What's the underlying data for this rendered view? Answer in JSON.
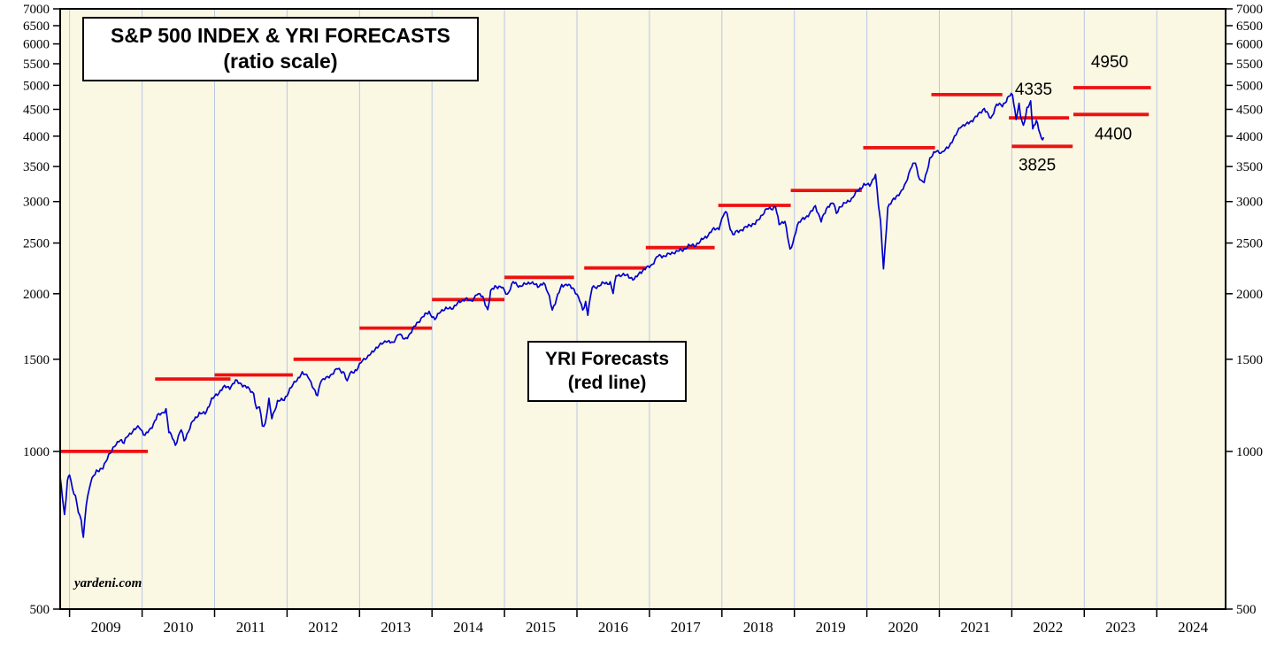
{
  "title_box": {
    "line1": "S&P 500 INDEX & YRI FORECASTS",
    "line2": "(ratio scale)"
  },
  "forecast_box": {
    "line1": "YRI Forecasts",
    "line2": "(red line)"
  },
  "credit": "yardeni.com",
  "chart_data": {
    "type": "line",
    "title": "S&P 500 INDEX & YRI FORECASTS (ratio scale)",
    "scale": "log",
    "x_domain": [
      2008.87,
      2024.95
    ],
    "y_domain": [
      500,
      7000
    ],
    "y_ticks": [
      500,
      1000,
      1500,
      2000,
      2500,
      3000,
      3500,
      4000,
      4500,
      5000,
      5500,
      6000,
      6500,
      7000
    ],
    "x_year_labels": [
      2009,
      2010,
      2011,
      2012,
      2013,
      2014,
      2015,
      2016,
      2017,
      2018,
      2019,
      2020,
      2021,
      2022,
      2023,
      2024
    ],
    "grid_years": [
      2009,
      2010,
      2011,
      2012,
      2013,
      2014,
      2015,
      2016,
      2017,
      2018,
      2019,
      2020,
      2021,
      2022,
      2023,
      2024
    ],
    "legend": [
      {
        "name": "S&P 500 Index",
        "color_key": "index_line"
      },
      {
        "name": "YRI Forecasts",
        "color_key": "forecast_line"
      }
    ],
    "colors": {
      "index_line": "#0000cd",
      "forecast_line": "#ee1111",
      "grid": "#b9c7e6",
      "plot_bg": "#faf7e3",
      "axis": "#000000"
    },
    "forecast_segments": [
      {
        "value": 1000,
        "from": 2008.87,
        "to": 2010.08
      },
      {
        "value": 1375,
        "from": 2010.18,
        "to": 2011.22
      },
      {
        "value": 1400,
        "from": 2011.0,
        "to": 2012.08
      },
      {
        "value": 1500,
        "from": 2012.09,
        "to": 2013.02
      },
      {
        "value": 1720,
        "from": 2013.0,
        "to": 2014.0
      },
      {
        "value": 1950,
        "from": 2014.0,
        "to": 2015.0
      },
      {
        "value": 2150,
        "from": 2015.0,
        "to": 2015.96
      },
      {
        "value": 2240,
        "from": 2016.1,
        "to": 2016.95
      },
      {
        "value": 2450,
        "from": 2016.95,
        "to": 2017.9
      },
      {
        "value": 2950,
        "from": 2017.95,
        "to": 2018.95
      },
      {
        "value": 3150,
        "from": 2018.95,
        "to": 2019.93
      },
      {
        "value": 3800,
        "from": 2019.95,
        "to": 2020.94
      },
      {
        "value": 4800,
        "from": 2020.89,
        "to": 2021.87
      },
      {
        "value": 4335,
        "from": 2021.96,
        "to": 2022.79
      },
      {
        "value": 3825,
        "from": 2022.0,
        "to": 2022.84
      },
      {
        "value": 4400,
        "from": 2022.85,
        "to": 2023.89
      },
      {
        "value": 4950,
        "from": 2022.85,
        "to": 2023.92
      }
    ],
    "annotations": [
      {
        "label": "4335",
        "year": 2022.3,
        "value": 4335,
        "dy": -26
      },
      {
        "label": "3825",
        "year": 2022.35,
        "value": 3825,
        "dy": 27
      },
      {
        "label": "4950",
        "year": 2023.35,
        "value": 4950,
        "dy": -23
      },
      {
        "label": "4400",
        "year": 2023.4,
        "value": 4400,
        "dy": 28
      }
    ],
    "series": [
      {
        "name": "S&P 500 Index",
        "color_key": "index_line",
        "points": [
          [
            2008.87,
            890
          ],
          [
            2008.9,
            820
          ],
          [
            2008.93,
            757
          ],
          [
            2008.97,
            880
          ],
          [
            2009.0,
            903
          ],
          [
            2009.04,
            845
          ],
          [
            2009.08,
            825
          ],
          [
            2009.12,
            770
          ],
          [
            2009.16,
            735
          ],
          [
            2009.19,
            683
          ],
          [
            2009.23,
            797
          ],
          [
            2009.29,
            872
          ],
          [
            2009.37,
            919
          ],
          [
            2009.46,
            927
          ],
          [
            2009.54,
            987
          ],
          [
            2009.62,
            1020
          ],
          [
            2009.7,
            1057
          ],
          [
            2009.75,
            1036
          ],
          [
            2009.79,
            1066
          ],
          [
            2009.87,
            1095
          ],
          [
            2009.96,
            1115
          ],
          [
            2010.04,
            1073
          ],
          [
            2010.12,
            1104
          ],
          [
            2010.21,
            1169
          ],
          [
            2010.29,
            1186
          ],
          [
            2010.33,
            1205
          ],
          [
            2010.37,
            1089
          ],
          [
            2010.42,
            1064
          ],
          [
            2010.46,
            1030
          ],
          [
            2010.54,
            1101
          ],
          [
            2010.58,
            1049
          ],
          [
            2010.62,
            1078
          ],
          [
            2010.7,
            1141
          ],
          [
            2010.79,
            1183
          ],
          [
            2010.87,
            1180
          ],
          [
            2010.96,
            1257
          ],
          [
            2011.04,
            1286
          ],
          [
            2011.12,
            1327
          ],
          [
            2011.21,
            1325
          ],
          [
            2011.29,
            1363
          ],
          [
            2011.37,
            1345
          ],
          [
            2011.46,
            1320
          ],
          [
            2011.54,
            1292
          ],
          [
            2011.58,
            1200
          ],
          [
            2011.62,
            1218
          ],
          [
            2011.66,
            1120
          ],
          [
            2011.7,
            1131
          ],
          [
            2011.75,
            1253
          ],
          [
            2011.79,
            1158
          ],
          [
            2011.87,
            1246
          ],
          [
            2011.96,
            1257
          ],
          [
            2012.04,
            1312
          ],
          [
            2012.12,
            1365
          ],
          [
            2012.21,
            1408
          ],
          [
            2012.29,
            1397
          ],
          [
            2012.37,
            1310
          ],
          [
            2012.42,
            1278
          ],
          [
            2012.46,
            1362
          ],
          [
            2012.54,
            1379
          ],
          [
            2012.62,
            1406
          ],
          [
            2012.7,
            1440
          ],
          [
            2012.79,
            1412
          ],
          [
            2012.83,
            1353
          ],
          [
            2012.87,
            1416
          ],
          [
            2012.96,
            1426
          ],
          [
            2013.04,
            1498
          ],
          [
            2013.12,
            1514
          ],
          [
            2013.21,
            1569
          ],
          [
            2013.29,
            1597
          ],
          [
            2013.37,
            1630
          ],
          [
            2013.46,
            1606
          ],
          [
            2013.54,
            1685
          ],
          [
            2013.62,
            1632
          ],
          [
            2013.7,
            1681
          ],
          [
            2013.79,
            1756
          ],
          [
            2013.87,
            1805
          ],
          [
            2013.96,
            1848
          ],
          [
            2014.04,
            1782
          ],
          [
            2014.12,
            1859
          ],
          [
            2014.21,
            1872
          ],
          [
            2014.29,
            1883
          ],
          [
            2014.37,
            1923
          ],
          [
            2014.46,
            1960
          ],
          [
            2014.54,
            1930
          ],
          [
            2014.62,
            2003
          ],
          [
            2014.7,
            1972
          ],
          [
            2014.77,
            1862
          ],
          [
            2014.81,
            2018
          ],
          [
            2014.87,
            2067
          ],
          [
            2014.96,
            2058
          ],
          [
            2015.04,
            1994
          ],
          [
            2015.12,
            2104
          ],
          [
            2015.21,
            2067
          ],
          [
            2015.29,
            2085
          ],
          [
            2015.37,
            2107
          ],
          [
            2015.46,
            2063
          ],
          [
            2015.54,
            2103
          ],
          [
            2015.62,
            1972
          ],
          [
            2015.66,
            1868
          ],
          [
            2015.7,
            1920
          ],
          [
            2015.79,
            2079
          ],
          [
            2015.87,
            2080
          ],
          [
            2015.96,
            2043
          ],
          [
            2016.04,
            1940
          ],
          [
            2016.08,
            1859
          ],
          [
            2016.12,
            1932
          ],
          [
            2016.15,
            1829
          ],
          [
            2016.21,
            2059
          ],
          [
            2016.29,
            2065
          ],
          [
            2016.37,
            2096
          ],
          [
            2016.46,
            2098
          ],
          [
            2016.5,
            2001
          ],
          [
            2016.54,
            2173
          ],
          [
            2016.62,
            2170
          ],
          [
            2016.7,
            2168
          ],
          [
            2016.79,
            2126
          ],
          [
            2016.87,
            2198
          ],
          [
            2016.96,
            2238
          ],
          [
            2017.04,
            2278
          ],
          [
            2017.12,
            2363
          ],
          [
            2017.21,
            2362
          ],
          [
            2017.29,
            2384
          ],
          [
            2017.37,
            2411
          ],
          [
            2017.46,
            2423
          ],
          [
            2017.54,
            2470
          ],
          [
            2017.62,
            2471
          ],
          [
            2017.7,
            2519
          ],
          [
            2017.79,
            2575
          ],
          [
            2017.87,
            2647
          ],
          [
            2017.96,
            2673
          ],
          [
            2018.02,
            2823
          ],
          [
            2018.07,
            2872
          ],
          [
            2018.1,
            2713
          ],
          [
            2018.15,
            2581
          ],
          [
            2018.21,
            2640
          ],
          [
            2018.29,
            2648
          ],
          [
            2018.37,
            2705
          ],
          [
            2018.46,
            2718
          ],
          [
            2018.54,
            2816
          ],
          [
            2018.62,
            2901
          ],
          [
            2018.7,
            2913
          ],
          [
            2018.74,
            2940
          ],
          [
            2018.79,
            2711
          ],
          [
            2018.87,
            2760
          ],
          [
            2018.94,
            2416
          ],
          [
            2018.98,
            2506
          ],
          [
            2019.04,
            2704
          ],
          [
            2019.12,
            2784
          ],
          [
            2019.21,
            2834
          ],
          [
            2019.29,
            2945
          ],
          [
            2019.37,
            2752
          ],
          [
            2019.46,
            2941
          ],
          [
            2019.54,
            2980
          ],
          [
            2019.58,
            2847
          ],
          [
            2019.62,
            2926
          ],
          [
            2019.7,
            2976
          ],
          [
            2019.79,
            3037
          ],
          [
            2019.87,
            3140
          ],
          [
            2019.96,
            3230
          ],
          [
            2020.04,
            3225
          ],
          [
            2020.12,
            3380
          ],
          [
            2020.16,
            2954
          ],
          [
            2020.19,
            2741
          ],
          [
            2020.23,
            2237
          ],
          [
            2020.29,
            2912
          ],
          [
            2020.37,
            3044
          ],
          [
            2020.46,
            3100
          ],
          [
            2020.54,
            3271
          ],
          [
            2020.62,
            3500
          ],
          [
            2020.67,
            3580
          ],
          [
            2020.71,
            3363
          ],
          [
            2020.75,
            3270
          ],
          [
            2020.79,
            3269
          ],
          [
            2020.87,
            3621
          ],
          [
            2020.96,
            3756
          ],
          [
            2021.04,
            3714
          ],
          [
            2021.12,
            3811
          ],
          [
            2021.21,
            3972
          ],
          [
            2021.29,
            4181
          ],
          [
            2021.37,
            4204
          ],
          [
            2021.46,
            4297
          ],
          [
            2021.54,
            4395
          ],
          [
            2021.62,
            4522
          ],
          [
            2021.71,
            4307
          ],
          [
            2021.79,
            4605
          ],
          [
            2021.87,
            4567
          ],
          [
            2021.96,
            4766
          ],
          [
            2022.01,
            4797
          ],
          [
            2022.06,
            4326
          ],
          [
            2022.1,
            4589
          ],
          [
            2022.12,
            4373
          ],
          [
            2022.16,
            4170
          ],
          [
            2022.21,
            4530
          ],
          [
            2022.26,
            4631
          ],
          [
            2022.29,
            4131
          ],
          [
            2022.34,
            4300
          ],
          [
            2022.37,
            4132
          ],
          [
            2022.41,
            3930
          ],
          [
            2022.44,
            3980
          ]
        ]
      }
    ]
  }
}
